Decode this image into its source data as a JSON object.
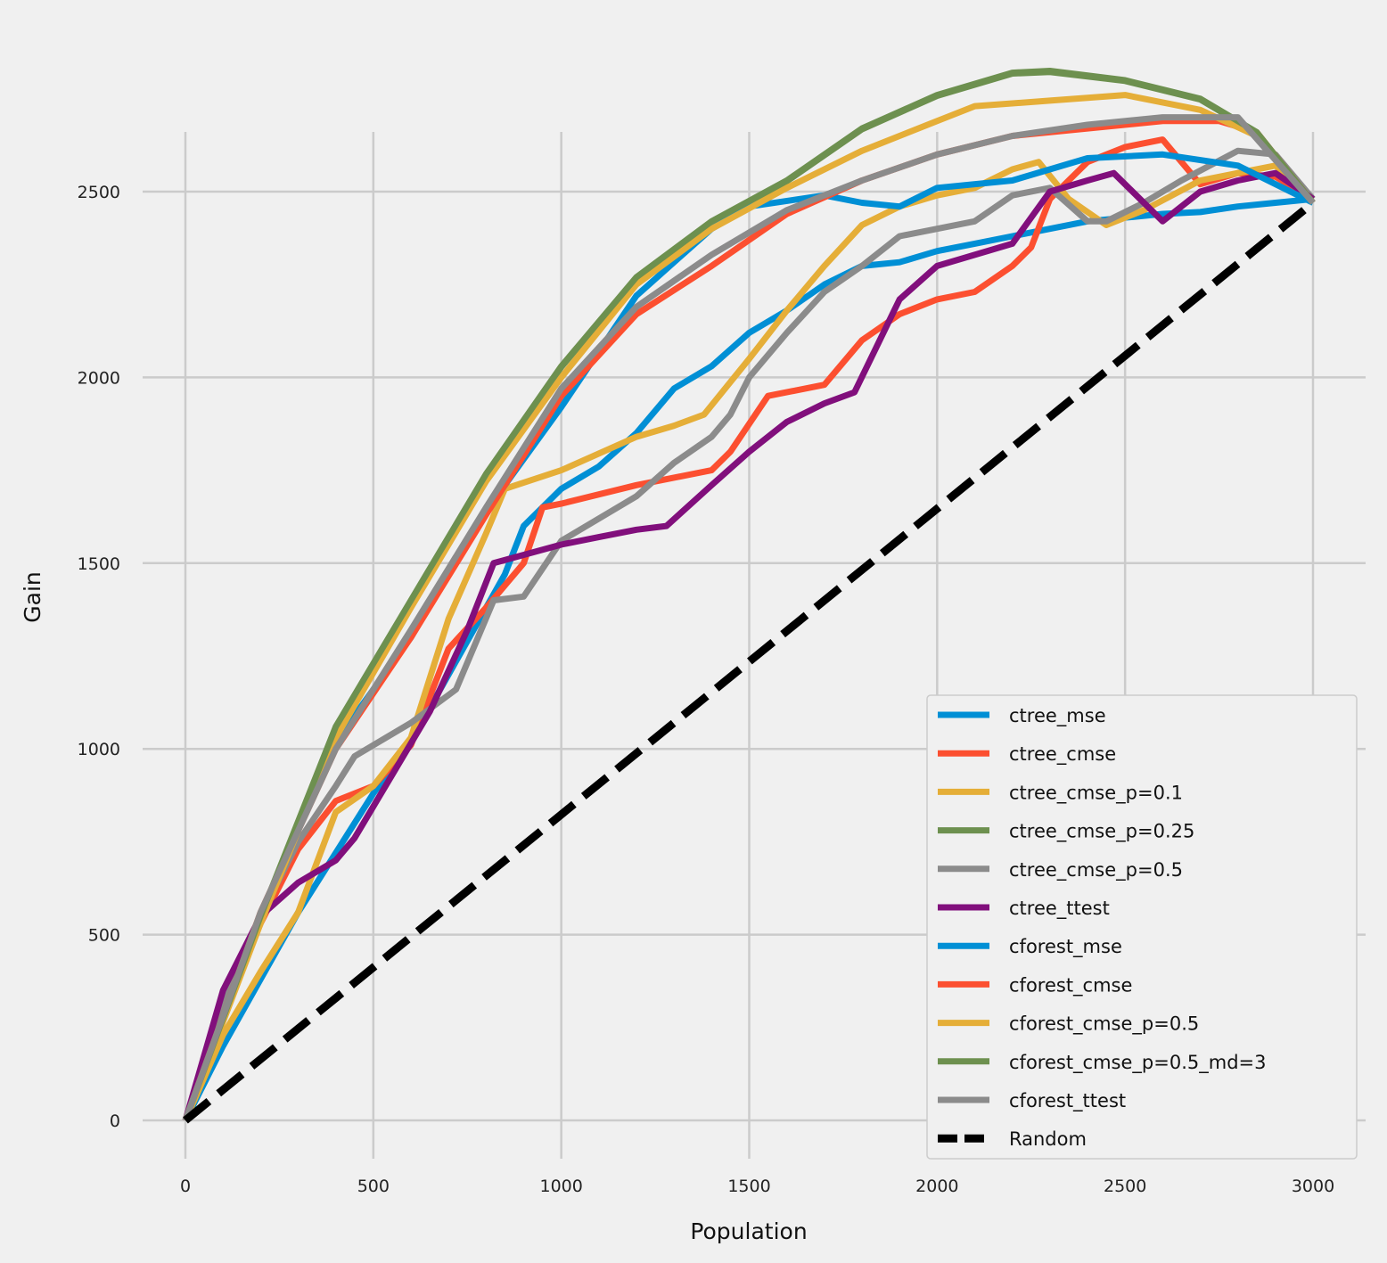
{
  "chart_data": {
    "type": "line",
    "title": "",
    "xlabel": "Population",
    "ylabel": "Gain",
    "xlim": [
      -150,
      3150
    ],
    "ylim": [
      -120,
      2900
    ],
    "xticks": [
      0,
      500,
      1000,
      1500,
      2000,
      2500,
      3000
    ],
    "yticks": [
      0,
      500,
      1000,
      1500,
      2000,
      2500
    ],
    "grid": true,
    "legend_position": "bottom-right",
    "series": [
      {
        "name": "ctree_mse",
        "color": "#008fd5",
        "points": [
          [
            0,
            0
          ],
          [
            100,
            200
          ],
          [
            200,
            380
          ],
          [
            300,
            560
          ],
          [
            400,
            720
          ],
          [
            500,
            880
          ],
          [
            600,
            1020
          ],
          [
            700,
            1200
          ],
          [
            800,
            1380
          ],
          [
            850,
            1470
          ],
          [
            900,
            1600
          ],
          [
            1000,
            1700
          ],
          [
            1100,
            1760
          ],
          [
            1200,
            1850
          ],
          [
            1300,
            1970
          ],
          [
            1400,
            2030
          ],
          [
            1500,
            2120
          ],
          [
            1600,
            2180
          ],
          [
            1700,
            2250
          ],
          [
            1800,
            2300
          ],
          [
            1900,
            2310
          ],
          [
            2000,
            2340
          ],
          [
            2100,
            2360
          ],
          [
            2200,
            2380
          ],
          [
            2300,
            2400
          ],
          [
            2400,
            2420
          ],
          [
            2500,
            2430
          ],
          [
            2600,
            2440
          ],
          [
            2700,
            2445
          ],
          [
            2800,
            2460
          ],
          [
            2900,
            2470
          ],
          [
            3000,
            2480
          ]
        ]
      },
      {
        "name": "ctree_cmse",
        "color": "#fc4f30",
        "points": [
          [
            0,
            0
          ],
          [
            100,
            300
          ],
          [
            200,
            530
          ],
          [
            300,
            730
          ],
          [
            400,
            860
          ],
          [
            500,
            900
          ],
          [
            600,
            1010
          ],
          [
            700,
            1270
          ],
          [
            800,
            1380
          ],
          [
            900,
            1500
          ],
          [
            950,
            1650
          ],
          [
            1000,
            1660
          ],
          [
            1200,
            1710
          ],
          [
            1400,
            1750
          ],
          [
            1450,
            1800
          ],
          [
            1550,
            1950
          ],
          [
            1700,
            1980
          ],
          [
            1800,
            2100
          ],
          [
            1900,
            2170
          ],
          [
            2000,
            2210
          ],
          [
            2100,
            2230
          ],
          [
            2200,
            2300
          ],
          [
            2250,
            2350
          ],
          [
            2300,
            2480
          ],
          [
            2400,
            2580
          ],
          [
            2500,
            2620
          ],
          [
            2600,
            2640
          ],
          [
            2700,
            2520
          ],
          [
            2800,
            2550
          ],
          [
            2900,
            2540
          ],
          [
            3000,
            2480
          ]
        ]
      },
      {
        "name": "ctree_cmse_p=0.1",
        "color": "#e5ae38",
        "points": [
          [
            0,
            0
          ],
          [
            100,
            230
          ],
          [
            200,
            400
          ],
          [
            300,
            560
          ],
          [
            400,
            830
          ],
          [
            500,
            900
          ],
          [
            600,
            1030
          ],
          [
            700,
            1350
          ],
          [
            800,
            1580
          ],
          [
            850,
            1700
          ],
          [
            1000,
            1750
          ],
          [
            1200,
            1840
          ],
          [
            1300,
            1870
          ],
          [
            1380,
            1900
          ],
          [
            1500,
            2050
          ],
          [
            1600,
            2180
          ],
          [
            1700,
            2300
          ],
          [
            1800,
            2410
          ],
          [
            1900,
            2460
          ],
          [
            2000,
            2490
          ],
          [
            2100,
            2510
          ],
          [
            2200,
            2560
          ],
          [
            2270,
            2580
          ],
          [
            2350,
            2480
          ],
          [
            2450,
            2410
          ],
          [
            2550,
            2450
          ],
          [
            2700,
            2530
          ],
          [
            2900,
            2570
          ],
          [
            3000,
            2480
          ]
        ]
      },
      {
        "name": "ctree_cmse_p=0.25",
        "color": "#6d904f",
        "points": [
          [
            0,
            0
          ],
          [
            200,
            548
          ],
          [
            400,
            1058
          ],
          [
            600,
            1398
          ],
          [
            800,
            1738
          ],
          [
            1000,
            2028
          ],
          [
            1200,
            2268
          ],
          [
            1400,
            2418
          ],
          [
            1600,
            2528
          ],
          [
            1800,
            2668
          ],
          [
            2000,
            2758
          ],
          [
            2200,
            2818
          ],
          [
            2300,
            2822
          ],
          [
            2500,
            2798
          ],
          [
            2700,
            2748
          ],
          [
            2850,
            2658
          ],
          [
            3000,
            2470
          ]
        ]
      },
      {
        "name": "ctree_cmse_p=0.5",
        "color": "#8b8b8b",
        "points": [
          [
            0,
            0
          ],
          [
            100,
            320
          ],
          [
            200,
            550
          ],
          [
            300,
            750
          ],
          [
            400,
            900
          ],
          [
            450,
            980
          ],
          [
            600,
            1070
          ],
          [
            720,
            1160
          ],
          [
            820,
            1400
          ],
          [
            900,
            1410
          ],
          [
            1000,
            1560
          ],
          [
            1200,
            1680
          ],
          [
            1300,
            1770
          ],
          [
            1400,
            1840
          ],
          [
            1450,
            1900
          ],
          [
            1500,
            2000
          ],
          [
            1600,
            2120
          ],
          [
            1700,
            2230
          ],
          [
            1800,
            2300
          ],
          [
            1900,
            2380
          ],
          [
            2000,
            2400
          ],
          [
            2100,
            2420
          ],
          [
            2200,
            2490
          ],
          [
            2300,
            2510
          ],
          [
            2400,
            2420
          ],
          [
            2450,
            2420
          ],
          [
            2550,
            2470
          ],
          [
            2650,
            2530
          ],
          [
            2800,
            2610
          ],
          [
            2900,
            2600
          ],
          [
            3000,
            2480
          ]
        ]
      },
      {
        "name": "ctree_ttest",
        "color": "#810f7c",
        "points": [
          [
            0,
            0
          ],
          [
            100,
            350
          ],
          [
            200,
            550
          ],
          [
            300,
            640
          ],
          [
            400,
            700
          ],
          [
            450,
            760
          ],
          [
            550,
            930
          ],
          [
            650,
            1100
          ],
          [
            750,
            1320
          ],
          [
            820,
            1500
          ],
          [
            1000,
            1550
          ],
          [
            1100,
            1570
          ],
          [
            1200,
            1590
          ],
          [
            1280,
            1600
          ],
          [
            1400,
            1710
          ],
          [
            1500,
            1800
          ],
          [
            1600,
            1880
          ],
          [
            1700,
            1930
          ],
          [
            1780,
            1960
          ],
          [
            1900,
            2210
          ],
          [
            2000,
            2300
          ],
          [
            2100,
            2330
          ],
          [
            2200,
            2360
          ],
          [
            2300,
            2500
          ],
          [
            2400,
            2530
          ],
          [
            2470,
            2550
          ],
          [
            2600,
            2420
          ],
          [
            2700,
            2500
          ],
          [
            2800,
            2530
          ],
          [
            2900,
            2550
          ],
          [
            3000,
            2480
          ]
        ]
      },
      {
        "name": "cforest_mse",
        "color": "#008fd5",
        "points": [
          [
            0,
            0
          ],
          [
            200,
            550
          ],
          [
            400,
            1020
          ],
          [
            600,
            1300
          ],
          [
            800,
            1640
          ],
          [
            1000,
            1920
          ],
          [
            1200,
            2220
          ],
          [
            1400,
            2400
          ],
          [
            1500,
            2460
          ],
          [
            1700,
            2490
          ],
          [
            1800,
            2470
          ],
          [
            1900,
            2460
          ],
          [
            2000,
            2510
          ],
          [
            2200,
            2530
          ],
          [
            2400,
            2590
          ],
          [
            2600,
            2600
          ],
          [
            2800,
            2570
          ],
          [
            3000,
            2470
          ]
        ]
      },
      {
        "name": "cforest_cmse",
        "color": "#fc4f30",
        "points": [
          [
            0,
            0
          ],
          [
            200,
            560
          ],
          [
            400,
            1000
          ],
          [
            600,
            1300
          ],
          [
            800,
            1630
          ],
          [
            1000,
            1950
          ],
          [
            1200,
            2170
          ],
          [
            1400,
            2300
          ],
          [
            1600,
            2440
          ],
          [
            1800,
            2530
          ],
          [
            2000,
            2600
          ],
          [
            2200,
            2650
          ],
          [
            2400,
            2670
          ],
          [
            2600,
            2690
          ],
          [
            2750,
            2690
          ],
          [
            2850,
            2660
          ],
          [
            3000,
            2470
          ]
        ]
      },
      {
        "name": "cforest_cmse_p=0.5",
        "color": "#e5ae38",
        "points": [
          [
            0,
            0
          ],
          [
            200,
            530
          ],
          [
            400,
            1030
          ],
          [
            600,
            1380
          ],
          [
            800,
            1720
          ],
          [
            1000,
            2000
          ],
          [
            1200,
            2250
          ],
          [
            1400,
            2400
          ],
          [
            1600,
            2510
          ],
          [
            1800,
            2610
          ],
          [
            2000,
            2690
          ],
          [
            2100,
            2730
          ],
          [
            2300,
            2745
          ],
          [
            2500,
            2760
          ],
          [
            2700,
            2720
          ],
          [
            2850,
            2650
          ],
          [
            3000,
            2470
          ]
        ]
      },
      {
        "name": "cforest_cmse_p=0.5_md=3",
        "color": "#6d904f",
        "points": [
          [
            0,
            0
          ],
          [
            200,
            550
          ],
          [
            400,
            1060
          ],
          [
            600,
            1400
          ],
          [
            800,
            1740
          ],
          [
            1000,
            2030
          ],
          [
            1200,
            2270
          ],
          [
            1400,
            2420
          ],
          [
            1600,
            2530
          ],
          [
            1800,
            2670
          ],
          [
            2000,
            2760
          ],
          [
            2200,
            2820
          ],
          [
            2300,
            2825
          ],
          [
            2500,
            2800
          ],
          [
            2700,
            2750
          ],
          [
            2850,
            2660
          ],
          [
            3000,
            2470
          ]
        ]
      },
      {
        "name": "cforest_ttest",
        "color": "#8b8b8b",
        "points": [
          [
            0,
            0
          ],
          [
            200,
            560
          ],
          [
            400,
            1000
          ],
          [
            600,
            1320
          ],
          [
            800,
            1650
          ],
          [
            1000,
            1970
          ],
          [
            1200,
            2190
          ],
          [
            1400,
            2330
          ],
          [
            1600,
            2450
          ],
          [
            1800,
            2530
          ],
          [
            2000,
            2600
          ],
          [
            2200,
            2650
          ],
          [
            2400,
            2680
          ],
          [
            2600,
            2700
          ],
          [
            2800,
            2700
          ],
          [
            3000,
            2470
          ]
        ]
      },
      {
        "name": "Random",
        "color": "#000000",
        "dashed": true,
        "points": [
          [
            0,
            0
          ],
          [
            3000,
            2470
          ]
        ]
      }
    ]
  }
}
